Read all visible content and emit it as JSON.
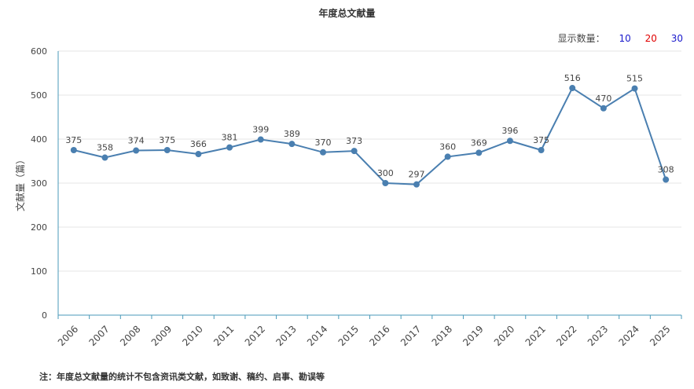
{
  "title": "年度总文献量",
  "display_count": {
    "label": "显示数量：",
    "options": [
      {
        "value": "10",
        "color": "#1a1acc"
      },
      {
        "value": "20",
        "color": "#e00000"
      },
      {
        "value": "30",
        "color": "#1a1acc"
      }
    ]
  },
  "footnote": "注：年度总文献量的统计不包含资讯类文献，如致谢、稿约、启事、勘误等",
  "colors": {
    "line": "#4a7fb0",
    "axis": "#4a9ab8",
    "grid": "#e6e6e6"
  },
  "chart_data": {
    "type": "line",
    "title": "年度总文献量",
    "ylabel": "文献量（篇）",
    "xlabel": "",
    "ylim": [
      0,
      600
    ],
    "yticks": [
      0,
      100,
      200,
      300,
      400,
      500,
      600
    ],
    "grid": true,
    "categories": [
      "2006",
      "2007",
      "2008",
      "2009",
      "2010",
      "2011",
      "2012",
      "2013",
      "2014",
      "2015",
      "2016",
      "2017",
      "2018",
      "2019",
      "2020",
      "2021",
      "2022",
      "2023",
      "2024",
      "2025"
    ],
    "series": [
      {
        "values": [
          375,
          358,
          374,
          375,
          366,
          381,
          399,
          389,
          370,
          373,
          300,
          297,
          360,
          369,
          396,
          375,
          516,
          470,
          515,
          308
        ]
      }
    ]
  }
}
